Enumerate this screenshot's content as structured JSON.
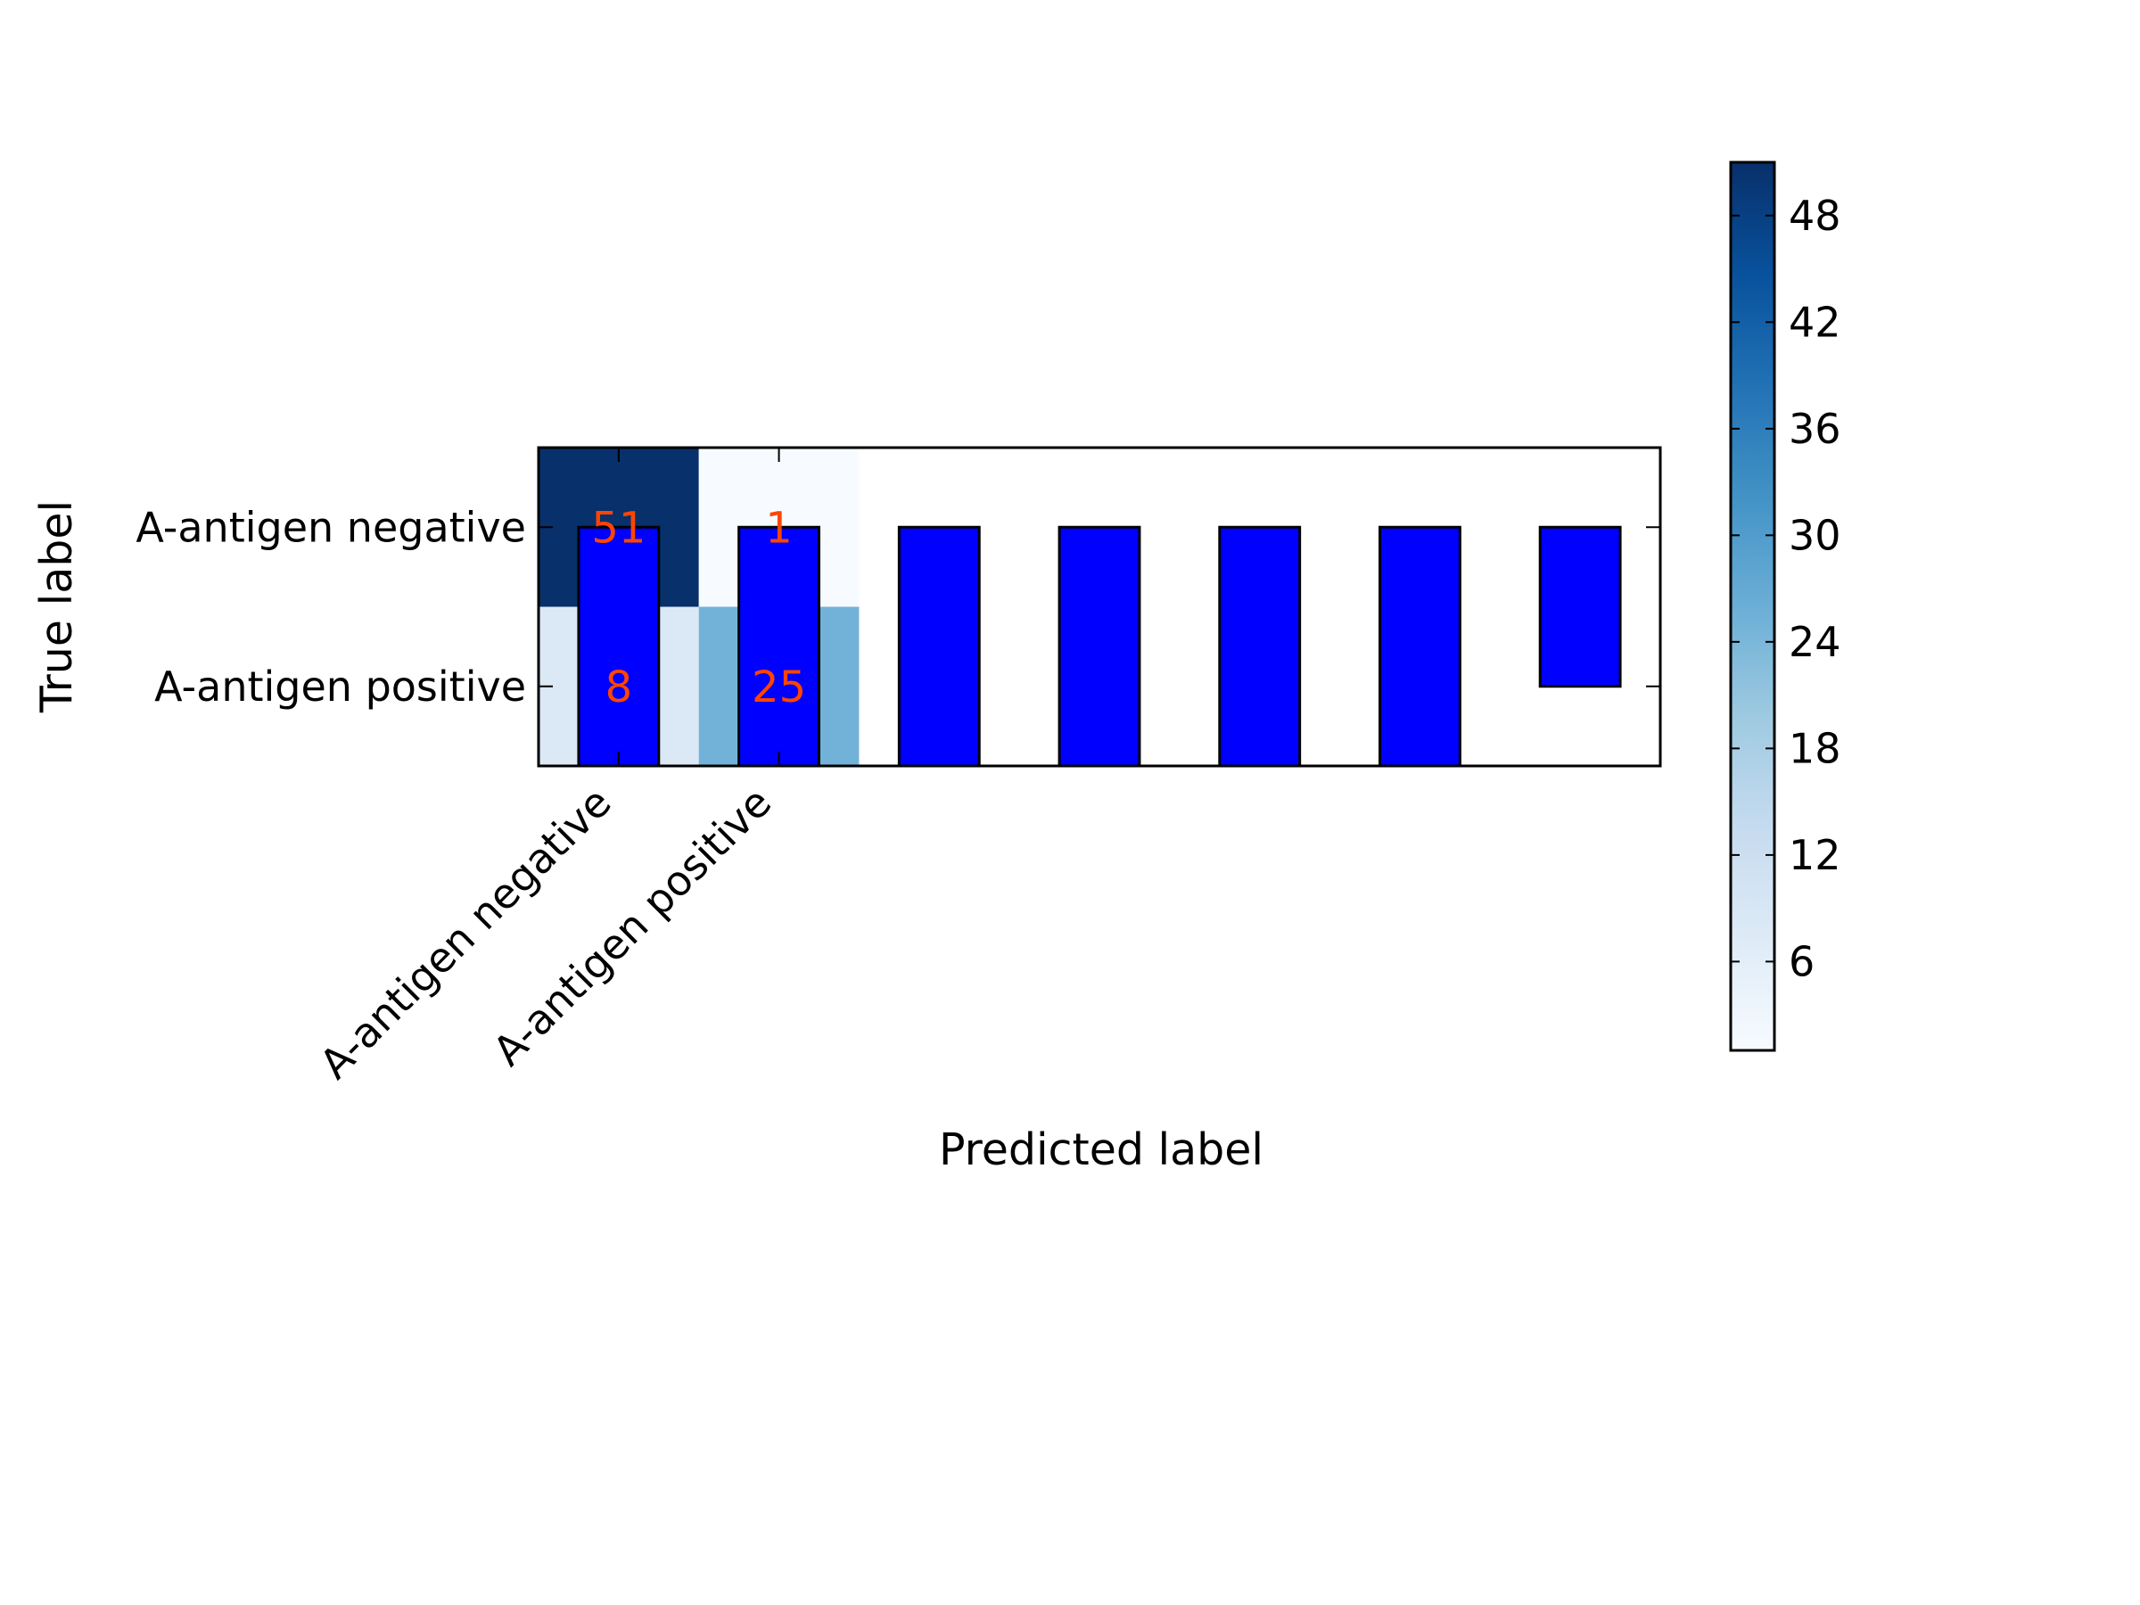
{
  "chart_data": {
    "type": "heatmap",
    "title": "",
    "xlabel": "Predicted label",
    "ylabel": "True label",
    "x_categories": [
      "A-antigen negative",
      "A-antigen positive"
    ],
    "y_categories": [
      "A-antigen negative",
      "A-antigen positive"
    ],
    "matrix": [
      [
        51,
        1
      ],
      [
        8,
        25
      ]
    ],
    "colormap": "Blues",
    "colorbar": {
      "range": [
        1,
        51
      ],
      "ticks": [
        6,
        12,
        18,
        24,
        30,
        36,
        42,
        48
      ]
    },
    "annotation_color": "#ff4500",
    "overlay_bars": {
      "type": "bar",
      "color": "#0000ff",
      "edge_color": "#000000",
      "x": [
        0,
        1,
        2,
        3,
        4,
        5,
        6
      ],
      "bottom": [
        1.5,
        1.5,
        1.5,
        1.5,
        1.5,
        1.5,
        1.0
      ],
      "top": [
        0,
        0,
        0,
        0,
        0,
        0,
        0
      ]
    }
  }
}
